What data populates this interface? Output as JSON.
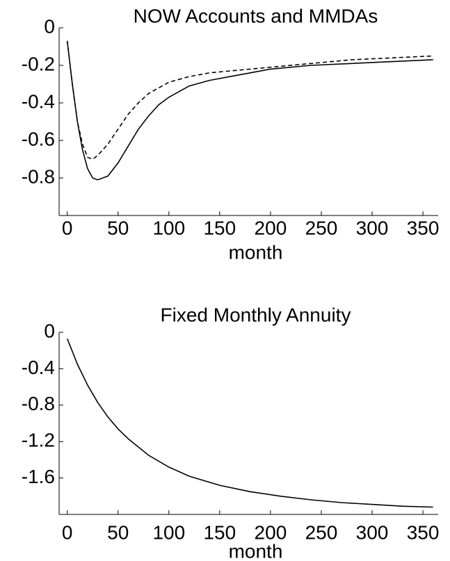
{
  "chart_data": [
    {
      "type": "line",
      "title": "NOW Accounts and MMDAs",
      "x_label": "month",
      "x": [
        0,
        5,
        10,
        15,
        20,
        25,
        30,
        40,
        50,
        60,
        70,
        80,
        90,
        100,
        120,
        140,
        160,
        180,
        200,
        240,
        280,
        320,
        360
      ],
      "series": [
        {
          "color": "#000000",
          "dash": "none",
          "values": [
            -0.07,
            -0.3,
            -0.5,
            -0.65,
            -0.75,
            -0.8,
            -0.81,
            -0.79,
            -0.72,
            -0.63,
            -0.54,
            -0.47,
            -0.41,
            -0.37,
            -0.31,
            -0.28,
            -0.26,
            -0.24,
            -0.22,
            -0.2,
            -0.19,
            -0.18,
            -0.17
          ]
        },
        {
          "color": "#000000",
          "dash": "6,4",
          "values": [
            -0.07,
            -0.3,
            -0.5,
            -0.62,
            -0.69,
            -0.7,
            -0.68,
            -0.62,
            -0.54,
            -0.46,
            -0.4,
            -0.35,
            -0.32,
            -0.29,
            -0.26,
            -0.24,
            -0.23,
            -0.22,
            -0.21,
            -0.19,
            -0.17,
            -0.16,
            -0.15
          ]
        }
      ],
      "xlim": [
        -8,
        365
      ],
      "xticks": [
        0,
        50,
        100,
        150,
        200,
        250,
        300,
        350
      ],
      "ylim": [
        -1.0,
        0
      ],
      "yticks": [
        0,
        -0.2,
        -0.4,
        -0.6,
        -0.8
      ]
    },
    {
      "type": "line",
      "title": "Fixed Monthly Annuity",
      "x_label": "month",
      "x": [
        0,
        10,
        20,
        30,
        40,
        50,
        60,
        80,
        100,
        120,
        150,
        180,
        210,
        240,
        270,
        300,
        330,
        360
      ],
      "series": [
        {
          "color": "#000000",
          "dash": "none",
          "values": [
            -0.07,
            -0.35,
            -0.58,
            -0.77,
            -0.93,
            -1.06,
            -1.17,
            -1.35,
            -1.48,
            -1.58,
            -1.68,
            -1.75,
            -1.8,
            -1.84,
            -1.87,
            -1.89,
            -1.91,
            -1.92
          ]
        }
      ],
      "xlim": [
        -8,
        365
      ],
      "xticks": [
        0,
        50,
        100,
        150,
        200,
        250,
        300,
        350
      ],
      "ylim": [
        -2.0,
        0
      ],
      "yticks": [
        0,
        -0.4,
        -0.8,
        -1.2,
        -1.6
      ]
    }
  ]
}
